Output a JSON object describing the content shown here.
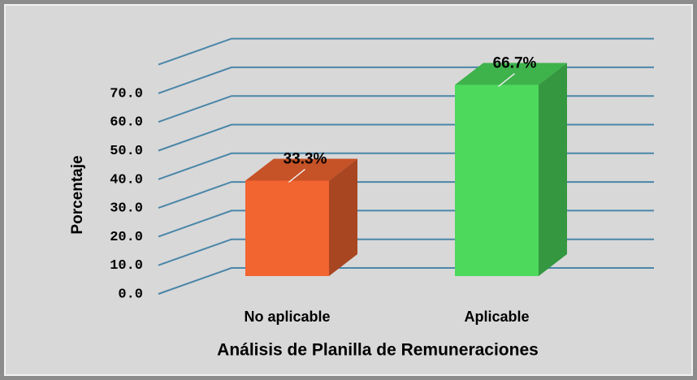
{
  "chart_data": {
    "type": "bar3d",
    "x_label": "Análisis de Planilla de Remuneraciones",
    "y_label": "Porcentaje",
    "categories": [
      "No aplicable",
      "Aplicable"
    ],
    "values": [
      33.3,
      66.7
    ],
    "value_labels": [
      "33.3%",
      "66.7%"
    ],
    "colors": [
      "#f26430",
      "#4cd95c"
    ],
    "ylim": [
      0,
      80
    ],
    "yticks": [
      {
        "value": 0,
        "label": "0.0"
      },
      {
        "value": 10,
        "label": "10.0"
      },
      {
        "value": 20,
        "label": "20.0"
      },
      {
        "value": 30,
        "label": "30.0"
      },
      {
        "value": 40,
        "label": "40.0"
      },
      {
        "value": 50,
        "label": "50.0"
      },
      {
        "value": 60,
        "label": "60.0"
      },
      {
        "value": 70,
        "label": "70.0"
      }
    ],
    "grid": true
  }
}
